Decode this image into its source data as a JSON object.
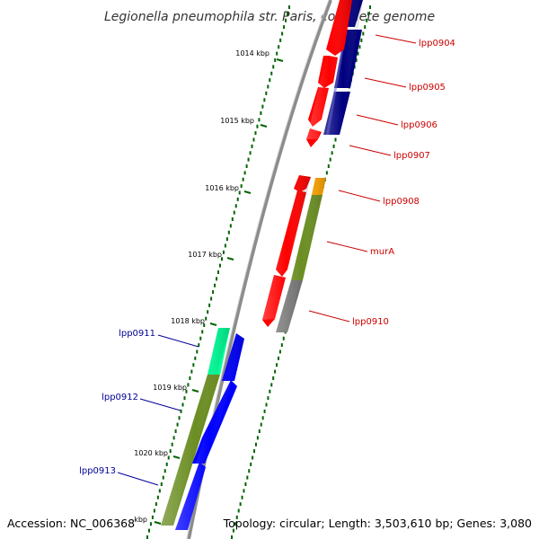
{
  "title": "Legionella pneumophila str. Paris, complete genome",
  "footer": {
    "accession": "Accession: NC_006368",
    "topology": "Topology: circular; Length: 3,503,610 bp; Genes: 3,080"
  },
  "colors": {
    "forward_gene": "#ff0000",
    "reverse_gene": "#0000ff",
    "forward_cds_track": "#000080",
    "reverse_cds_track": "#6b8e23",
    "other_feature": "#ffa500",
    "pseudo_feature": "#808080",
    "rna_feature": "#00ff99",
    "tick": "#006400",
    "forward_label": "#cc0000",
    "reverse_label": "#000099",
    "backbone": "#808080"
  },
  "ruler": [
    {
      "label": "1014 kbp"
    },
    {
      "label": "1015 kbp"
    },
    {
      "label": "1016 kbp"
    },
    {
      "label": "1017 kbp"
    },
    {
      "label": "1018 kbp"
    },
    {
      "label": "1019 kbp"
    },
    {
      "label": "1020 kbp"
    },
    {
      "label": "kbp"
    }
  ],
  "genes": [
    {
      "name": "lpp0904",
      "strand": "forward"
    },
    {
      "name": "lpp0905",
      "strand": "forward"
    },
    {
      "name": "lpp0906",
      "strand": "forward"
    },
    {
      "name": "lpp0907",
      "strand": "forward"
    },
    {
      "name": "lpp0908",
      "strand": "forward"
    },
    {
      "name": "murA",
      "strand": "forward"
    },
    {
      "name": "lpp0910",
      "strand": "forward"
    },
    {
      "name": "lpp0911",
      "strand": "reverse"
    },
    {
      "name": "lpp0912",
      "strand": "reverse"
    },
    {
      "name": "lpp0913",
      "strand": "reverse"
    }
  ]
}
